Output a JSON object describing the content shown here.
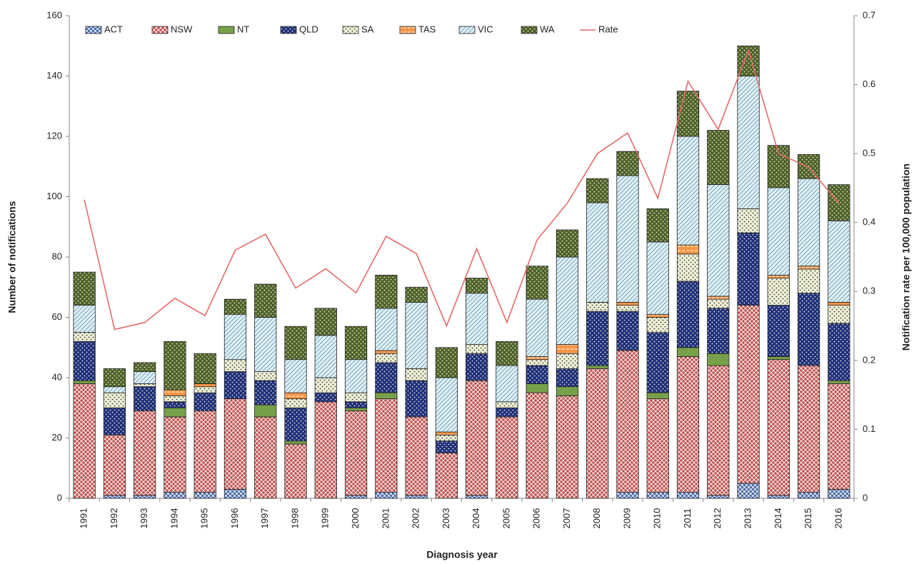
{
  "chart_data": {
    "type": "bar",
    "x_label": "Diagnosis year",
    "y_label": "Number of notifications",
    "y2_label": "Notification rate per 100,000 population",
    "categories": [
      "1991",
      "1992",
      "1993",
      "1994",
      "1995",
      "1996",
      "1997",
      "1998",
      "1999",
      "2000",
      "2001",
      "2002",
      "2003",
      "2004",
      "2005",
      "2006",
      "2007",
      "2008",
      "2009",
      "2010",
      "2011",
      "2012",
      "2013",
      "2014",
      "2015",
      "2016"
    ],
    "series": [
      {
        "name": "ACT",
        "color": "#4f6fa8",
        "values": [
          0,
          1,
          1,
          2,
          2,
          3,
          0,
          0,
          0,
          1,
          2,
          1,
          0,
          1,
          0,
          0,
          0,
          0,
          2,
          2,
          2,
          1,
          5,
          1,
          2,
          3
        ]
      },
      {
        "name": "NSW",
        "color": "#c0504d",
        "values": [
          38,
          20,
          28,
          25,
          27,
          30,
          27,
          18,
          32,
          28,
          31,
          26,
          15,
          38,
          27,
          35,
          34,
          43,
          47,
          31,
          45,
          43,
          59,
          45,
          42,
          35
        ]
      },
      {
        "name": "NT",
        "color": "#77a04a",
        "values": [
          1,
          0,
          0,
          3,
          0,
          0,
          4,
          1,
          0,
          1,
          2,
          0,
          0,
          0,
          0,
          3,
          3,
          1,
          0,
          2,
          3,
          4,
          0,
          1,
          0,
          1
        ]
      },
      {
        "name": "QLD",
        "color": "#1f2f7a",
        "values": [
          13,
          9,
          8,
          2,
          6,
          9,
          8,
          11,
          3,
          2,
          10,
          12,
          4,
          9,
          3,
          6,
          6,
          18,
          13,
          20,
          22,
          15,
          24,
          17,
          24,
          19
        ]
      },
      {
        "name": "SA",
        "color": "#eef0d6",
        "values": [
          3,
          5,
          1,
          2,
          2,
          4,
          3,
          3,
          5,
          3,
          3,
          4,
          2,
          3,
          2,
          2,
          5,
          3,
          2,
          5,
          9,
          3,
          8,
          9,
          8,
          6
        ]
      },
      {
        "name": "TAS",
        "color": "#f79646",
        "values": [
          0,
          0,
          0,
          2,
          1,
          0,
          0,
          2,
          0,
          0,
          1,
          0,
          1,
          0,
          0,
          1,
          3,
          0,
          1,
          1,
          3,
          1,
          0,
          1,
          1,
          1
        ]
      },
      {
        "name": "VIC",
        "color": "#dcf0f7",
        "values": [
          9,
          2,
          4,
          0,
          0,
          15,
          18,
          11,
          14,
          11,
          14,
          22,
          18,
          17,
          12,
          19,
          29,
          33,
          42,
          24,
          36,
          37,
          44,
          29,
          29,
          27
        ]
      },
      {
        "name": "WA",
        "color": "#4f6228",
        "values": [
          11,
          6,
          3,
          16,
          10,
          5,
          11,
          11,
          9,
          11,
          11,
          5,
          10,
          5,
          8,
          11,
          9,
          8,
          8,
          11,
          15,
          18,
          10,
          14,
          8,
          12
        ]
      },
      {
        "name": "Rate",
        "color": "#e8696b",
        "axis": "y2",
        "values": [
          0.433,
          0.245,
          0.255,
          0.29,
          0.265,
          0.36,
          0.383,
          0.305,
          0.333,
          0.298,
          0.38,
          0.355,
          0.25,
          0.362,
          0.255,
          0.375,
          0.428,
          0.5,
          0.53,
          0.435,
          0.605,
          0.535,
          0.65,
          0.5,
          0.48,
          0.428
        ]
      }
    ],
    "ylim": [
      0,
      160
    ],
    "yticks": [
      0,
      20,
      40,
      60,
      80,
      100,
      120,
      140,
      160
    ],
    "y2lim": [
      0,
      0.7
    ],
    "y2ticks": [
      0,
      0.1,
      0.2,
      0.3,
      0.4,
      0.5,
      0.6,
      0.7
    ],
    "legend": "top"
  }
}
